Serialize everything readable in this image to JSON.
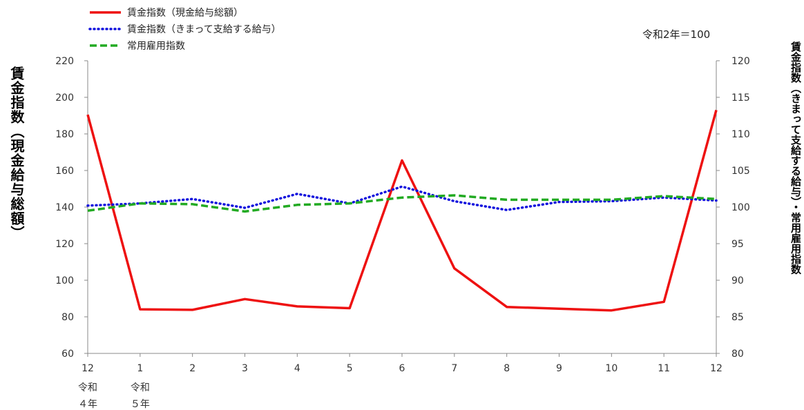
{
  "chart_data": {
    "type": "line",
    "note": "令和2年＝100",
    "categories": [
      "12",
      "1",
      "2",
      "3",
      "4",
      "5",
      "6",
      "7",
      "8",
      "9",
      "10",
      "11",
      "12"
    ],
    "era_labels": [
      {
        "index": 0,
        "line1": "令和",
        "line2": "４年"
      },
      {
        "index": 1,
        "line1": "令和",
        "line2": "５年"
      }
    ],
    "ylabel_left": "賃金指数（現金給与総額）",
    "ylabel_right": "賃金指数（きまって支給する給与）・常用雇用指数",
    "ylim_left": [
      60,
      220
    ],
    "yticks_left": [
      60,
      80,
      100,
      120,
      140,
      160,
      180,
      200,
      220
    ],
    "ylim_right": [
      80,
      120
    ],
    "yticks_right": [
      80,
      85,
      90,
      95,
      100,
      105,
      110,
      115,
      120
    ],
    "grid": false,
    "legend_position": "top-left",
    "series": [
      {
        "name": "賃金指数（現金給与総額）",
        "axis": "left",
        "color": "#ee1111",
        "style": "solid",
        "values": [
          190.5,
          84.1,
          83.8,
          89.7,
          85.7,
          84.7,
          165.5,
          106.5,
          85.4,
          84.4,
          83.5,
          88.2,
          193.0
        ]
      },
      {
        "name": "賃金指数（きまって支給する給与）",
        "axis": "right",
        "color": "#1111dd",
        "style": "dotted",
        "values": [
          100.2,
          100.5,
          101.1,
          99.9,
          101.8,
          100.5,
          102.8,
          100.8,
          99.6,
          100.7,
          100.8,
          101.3,
          100.9
        ]
      },
      {
        "name": "常用雇用指数",
        "axis": "right",
        "color": "#22aa22",
        "style": "dashed",
        "values": [
          99.5,
          100.5,
          100.4,
          99.4,
          100.3,
          100.5,
          101.3,
          101.6,
          101.0,
          101.0,
          101.0,
          101.5,
          101.1
        ]
      }
    ]
  }
}
